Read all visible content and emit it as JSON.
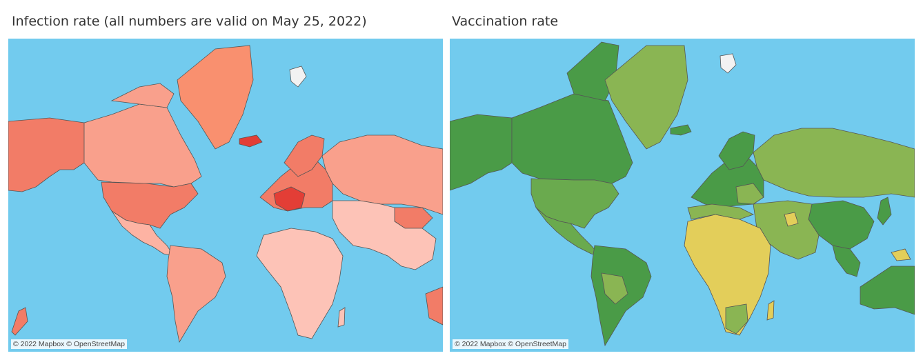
{
  "left_panel": {
    "title": "Infection rate (all numbers are valid on May 25, 2022)",
    "attribution": "© 2022 Mapbox © OpenStreetMap",
    "legend_colors": {
      "ocean": "#72cbee",
      "low": "#fdc3b7",
      "mid": "#f9a08c",
      "high": "#f27c67",
      "highest": "#e33e36",
      "land_no_data": "#f2f2f2"
    }
  },
  "right_panel": {
    "title": "Vaccination rate",
    "attribution": "© 2022 Mapbox © OpenStreetMap",
    "legend_colors": {
      "ocean": "#72cbee",
      "low": "#e3ce5a",
      "mid": "#8ab553",
      "high": "#4a9b47",
      "land_no_data": "#f2f2f2"
    }
  }
}
